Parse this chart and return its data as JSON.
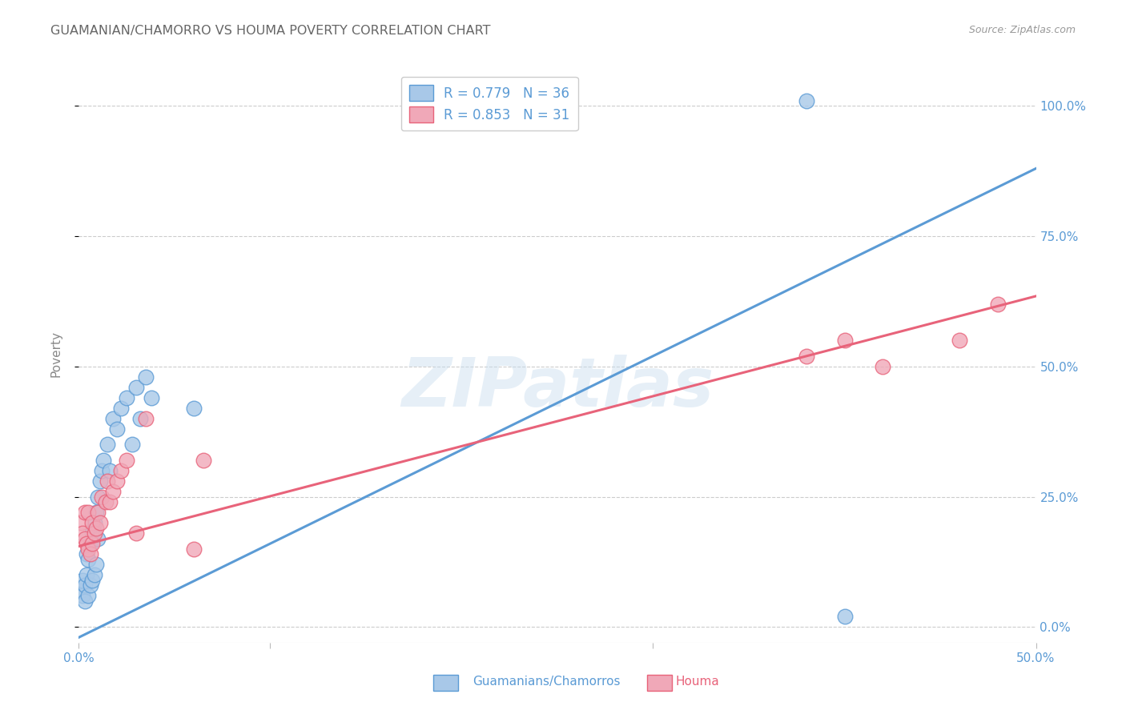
{
  "title": "GUAMANIAN/CHAMORRO VS HOUMA POVERTY CORRELATION CHART",
  "source": "Source: ZipAtlas.com",
  "ylabel": "Poverty",
  "xlim": [
    0.0,
    0.5
  ],
  "ylim": [
    -0.03,
    1.08
  ],
  "watermark": "ZIPatlas",
  "legend_label_blue": "R = 0.779   N = 36",
  "legend_label_pink": "R = 0.853   N = 31",
  "blue_color": "#5b9bd5",
  "pink_color": "#e8637a",
  "scatter_blue_face": "#a8c8e8",
  "scatter_pink_face": "#f0a8b8",
  "blue_line_x": [
    0.0,
    0.5
  ],
  "blue_line_y": [
    -0.02,
    0.88
  ],
  "pink_line_x": [
    0.0,
    0.5
  ],
  "pink_line_y": [
    0.155,
    0.635
  ],
  "blue_scatter_x": [
    0.001,
    0.002,
    0.002,
    0.003,
    0.003,
    0.004,
    0.004,
    0.005,
    0.005,
    0.006,
    0.006,
    0.007,
    0.007,
    0.008,
    0.008,
    0.009,
    0.009,
    0.01,
    0.01,
    0.011,
    0.012,
    0.013,
    0.015,
    0.016,
    0.018,
    0.02,
    0.022,
    0.025,
    0.028,
    0.03,
    0.032,
    0.035,
    0.038,
    0.06,
    0.38,
    0.4
  ],
  "blue_scatter_y": [
    0.07,
    0.06,
    0.09,
    0.08,
    0.05,
    0.1,
    0.14,
    0.06,
    0.13,
    0.08,
    0.16,
    0.09,
    0.18,
    0.1,
    0.2,
    0.12,
    0.22,
    0.17,
    0.25,
    0.28,
    0.3,
    0.32,
    0.35,
    0.3,
    0.4,
    0.38,
    0.42,
    0.44,
    0.35,
    0.46,
    0.4,
    0.48,
    0.44,
    0.42,
    1.01,
    0.02
  ],
  "pink_scatter_x": [
    0.001,
    0.002,
    0.003,
    0.003,
    0.004,
    0.005,
    0.005,
    0.006,
    0.007,
    0.007,
    0.008,
    0.009,
    0.01,
    0.011,
    0.012,
    0.014,
    0.015,
    0.016,
    0.018,
    0.02,
    0.022,
    0.025,
    0.03,
    0.035,
    0.06,
    0.065,
    0.38,
    0.4,
    0.42,
    0.46,
    0.48
  ],
  "pink_scatter_y": [
    0.2,
    0.18,
    0.17,
    0.22,
    0.16,
    0.15,
    0.22,
    0.14,
    0.16,
    0.2,
    0.18,
    0.19,
    0.22,
    0.2,
    0.25,
    0.24,
    0.28,
    0.24,
    0.26,
    0.28,
    0.3,
    0.32,
    0.18,
    0.4,
    0.15,
    0.32,
    0.52,
    0.55,
    0.5,
    0.55,
    0.62
  ],
  "background_color": "#ffffff",
  "grid_color": "#cccccc",
  "title_color": "#666666",
  "source_color": "#999999",
  "axis_tick_color": "#5b9bd5",
  "ylabel_color": "#888888",
  "y_tick_vals": [
    0.0,
    0.25,
    0.5,
    0.75,
    1.0
  ],
  "x_tick_vals_labeled": [
    0.0,
    0.5
  ],
  "x_tick_vals_minor": [
    0.1,
    0.3
  ]
}
